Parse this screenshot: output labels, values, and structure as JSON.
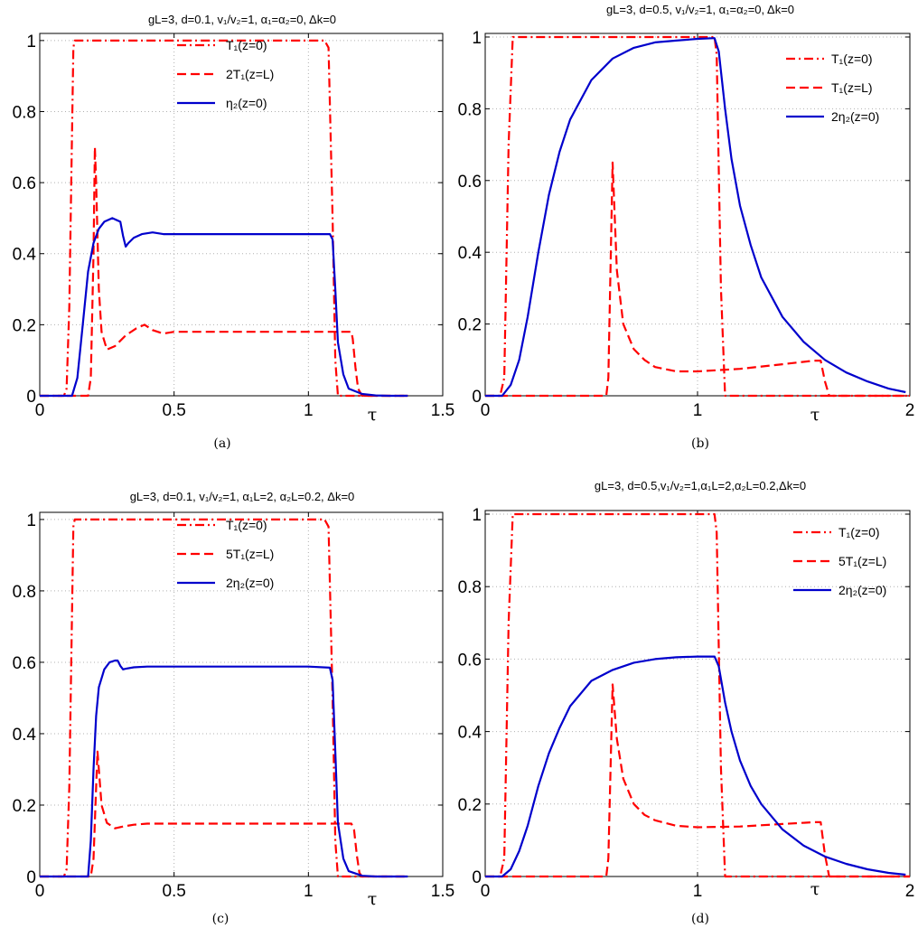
{
  "colors": {
    "red": "#ff0000",
    "blue": "#0000cc",
    "grid": "#b0b0b0",
    "axis": "#000000"
  },
  "chart_data": [
    {
      "type": "line",
      "panel": "a",
      "title": "gL=3, d=0.1, v₁/v₂=1, α₁=α₂=0, Δk=0",
      "caption": "(a)",
      "xlabel": "τ",
      "xlim": [
        0,
        1.5
      ],
      "ylim": [
        0,
        1.02
      ],
      "xticks": [
        "0",
        "0.5",
        "1",
        "1.5"
      ],
      "xtick_values": [
        0,
        0.5,
        1,
        1.5
      ],
      "yticks": [
        "0",
        "0.2",
        "0.4",
        "0.6",
        "0.8",
        "1"
      ],
      "ytick_values": [
        0,
        0.2,
        0.4,
        0.6,
        0.8,
        1
      ],
      "grid": true,
      "legend_position": "top-center",
      "series": [
        {
          "name": "T₁(z=0)",
          "style": "dashdot",
          "color": "#ff0000",
          "x": [
            0,
            0.09,
            0.1,
            0.11,
            0.125,
            0.13,
            1.06,
            1.075,
            1.09,
            1.1,
            1.11,
            1.37
          ],
          "y": [
            0,
            0,
            0.02,
            0.25,
            0.98,
            1,
            1,
            0.98,
            0.5,
            0.1,
            0,
            0
          ]
        },
        {
          "name": "2T₁(z=L)",
          "style": "dashed",
          "color": "#ff0000",
          "x": [
            0,
            0.18,
            0.19,
            0.2,
            0.205,
            0.21,
            0.22,
            0.23,
            0.25,
            0.28,
            0.32,
            0.36,
            0.39,
            0.42,
            0.46,
            0.5,
            0.6,
            0.8,
            1.0,
            1.16,
            1.165,
            1.175,
            1.185,
            1.2,
            1.37
          ],
          "y": [
            0,
            0,
            0.05,
            0.4,
            0.7,
            0.6,
            0.3,
            0.18,
            0.13,
            0.14,
            0.17,
            0.19,
            0.2,
            0.185,
            0.175,
            0.18,
            0.18,
            0.18,
            0.18,
            0.18,
            0.16,
            0.08,
            0.02,
            0,
            0
          ]
        },
        {
          "name": "η₂(z=0)",
          "style": "solid",
          "color": "#0000cc",
          "x": [
            0,
            0.12,
            0.14,
            0.16,
            0.18,
            0.2,
            0.22,
            0.24,
            0.27,
            0.3,
            0.31,
            0.32,
            0.33,
            0.35,
            0.38,
            0.42,
            0.46,
            0.5,
            0.6,
            0.8,
            1.0,
            1.08,
            1.09,
            1.1,
            1.11,
            1.13,
            1.15,
            1.2,
            1.25,
            1.3,
            1.37
          ],
          "y": [
            0,
            0,
            0.05,
            0.2,
            0.35,
            0.43,
            0.47,
            0.49,
            0.5,
            0.49,
            0.45,
            0.42,
            0.43,
            0.445,
            0.455,
            0.46,
            0.455,
            0.455,
            0.455,
            0.455,
            0.455,
            0.455,
            0.44,
            0.3,
            0.15,
            0.06,
            0.02,
            0.005,
            0.001,
            0,
            0
          ]
        }
      ]
    },
    {
      "type": "line",
      "panel": "b",
      "title": "gL=3, d=0.5, v₁/v₂=1, α₁=α₂=0, Δk=0",
      "caption": "(b)",
      "xlabel": "τ",
      "xlim": [
        0,
        2
      ],
      "ylim": [
        0,
        1.01
      ],
      "xticks": [
        "0",
        "1",
        "2"
      ],
      "xtick_values": [
        0,
        1,
        2
      ],
      "yticks": [
        "0",
        "0.2",
        "0.4",
        "0.6",
        "0.8",
        "1"
      ],
      "ytick_values": [
        0,
        0.2,
        0.4,
        0.6,
        0.8,
        1
      ],
      "grid": true,
      "legend_position": "top-right",
      "series": [
        {
          "name": "T₁(z=0)",
          "style": "dashdot",
          "color": "#ff0000",
          "x": [
            0,
            0.07,
            0.09,
            0.11,
            0.13,
            1.08,
            1.09,
            1.11,
            1.13,
            2
          ],
          "y": [
            0,
            0,
            0.05,
            0.7,
            1,
            1,
            0.95,
            0.3,
            0,
            0
          ]
        },
        {
          "name": "T₁(z=L)",
          "style": "dashed",
          "color": "#ff0000",
          "x": [
            0,
            0.57,
            0.58,
            0.6,
            0.62,
            0.65,
            0.7,
            0.75,
            0.8,
            0.9,
            1.0,
            1.2,
            1.4,
            1.55,
            1.58,
            1.6,
            1.62,
            2
          ],
          "y": [
            0,
            0,
            0.05,
            0.65,
            0.35,
            0.2,
            0.13,
            0.1,
            0.08,
            0.068,
            0.068,
            0.075,
            0.088,
            0.098,
            0.098,
            0.04,
            0,
            0
          ]
        },
        {
          "name": "2η₂(z=0)",
          "style": "solid",
          "color": "#0000cc",
          "x": [
            0,
            0.08,
            0.12,
            0.16,
            0.2,
            0.25,
            0.3,
            0.35,
            0.4,
            0.5,
            0.6,
            0.7,
            0.8,
            0.9,
            1.0,
            1.08,
            1.1,
            1.13,
            1.16,
            1.2,
            1.25,
            1.3,
            1.4,
            1.5,
            1.6,
            1.7,
            1.8,
            1.9,
            1.98
          ],
          "y": [
            0,
            0,
            0.03,
            0.1,
            0.22,
            0.4,
            0.56,
            0.68,
            0.77,
            0.88,
            0.94,
            0.97,
            0.985,
            0.99,
            0.995,
            0.997,
            0.96,
            0.8,
            0.66,
            0.53,
            0.42,
            0.33,
            0.22,
            0.15,
            0.1,
            0.065,
            0.04,
            0.02,
            0.01
          ]
        }
      ]
    },
    {
      "type": "line",
      "panel": "c",
      "title": "gL=3, d=0.1, v₁/v₂=1, α₁L=2, α₂L=0.2, Δk=0",
      "caption": "(c)",
      "xlabel": "τ",
      "xlim": [
        0,
        1.5
      ],
      "ylim": [
        0,
        1.02
      ],
      "xticks": [
        "0",
        "0.5",
        "1",
        "1.5"
      ],
      "xtick_values": [
        0,
        0.5,
        1,
        1.5
      ],
      "yticks": [
        "0",
        "0.2",
        "0.4",
        "0.6",
        "0.8",
        "1"
      ],
      "ytick_values": [
        0,
        0.2,
        0.4,
        0.6,
        0.8,
        1
      ],
      "grid": true,
      "legend_position": "top-center",
      "series": [
        {
          "name": "T₁(z=0)",
          "style": "dashdot",
          "color": "#ff0000",
          "x": [
            0,
            0.09,
            0.1,
            0.11,
            0.125,
            0.13,
            1.06,
            1.075,
            1.09,
            1.1,
            1.11,
            1.37
          ],
          "y": [
            0,
            0,
            0.02,
            0.25,
            0.98,
            1,
            1,
            0.98,
            0.5,
            0.1,
            0,
            0
          ]
        },
        {
          "name": "5T₁(z=L)",
          "style": "dashed",
          "color": "#ff0000",
          "x": [
            0,
            0.19,
            0.2,
            0.21,
            0.215,
            0.22,
            0.23,
            0.25,
            0.28,
            0.31,
            0.35,
            0.4,
            0.5,
            0.6,
            0.8,
            1.0,
            1.16,
            1.17,
            1.18,
            1.19,
            1.2,
            1.37
          ],
          "y": [
            0,
            0,
            0.05,
            0.25,
            0.35,
            0.3,
            0.2,
            0.15,
            0.135,
            0.14,
            0.145,
            0.148,
            0.148,
            0.148,
            0.148,
            0.148,
            0.148,
            0.13,
            0.06,
            0.01,
            0,
            0
          ]
        },
        {
          "name": "2η₂(z=0)",
          "style": "solid",
          "color": "#0000cc",
          "x": [
            0,
            0.18,
            0.19,
            0.2,
            0.21,
            0.22,
            0.24,
            0.26,
            0.28,
            0.29,
            0.3,
            0.31,
            0.32,
            0.35,
            0.4,
            0.5,
            0.8,
            1.0,
            1.08,
            1.09,
            1.1,
            1.11,
            1.13,
            1.15,
            1.2,
            1.25,
            1.37
          ],
          "y": [
            0,
            0,
            0.1,
            0.3,
            0.45,
            0.53,
            0.58,
            0.6,
            0.605,
            0.605,
            0.59,
            0.58,
            0.582,
            0.586,
            0.588,
            0.588,
            0.588,
            0.588,
            0.585,
            0.55,
            0.35,
            0.15,
            0.05,
            0.015,
            0.002,
            0,
            0
          ]
        }
      ]
    },
    {
      "type": "line",
      "panel": "d",
      "title": "gL=3, d=0.5,v₁/v₂=1,α₁L=2,α₂L=0.2,Δk=0",
      "caption": "(d)",
      "xlabel": "τ",
      "xlim": [
        0,
        2
      ],
      "ylim": [
        0,
        1.01
      ],
      "xticks": [
        "0",
        "1",
        "2"
      ],
      "xtick_values": [
        0,
        1,
        2
      ],
      "yticks": [
        "0",
        "0.2",
        "0.4",
        "0.6",
        "0.8",
        "1"
      ],
      "ytick_values": [
        0,
        0.2,
        0.4,
        0.6,
        0.8,
        1
      ],
      "grid": true,
      "legend_position": "top-right",
      "series": [
        {
          "name": "T₁(z=0)",
          "style": "dashdot",
          "color": "#ff0000",
          "x": [
            0,
            0.07,
            0.09,
            0.11,
            0.13,
            1.08,
            1.09,
            1.11,
            1.13,
            2
          ],
          "y": [
            0,
            0,
            0.05,
            0.7,
            1,
            1,
            0.95,
            0.3,
            0,
            0
          ]
        },
        {
          "name": "5T₁(z=L)",
          "style": "dashed",
          "color": "#ff0000",
          "x": [
            0,
            0.57,
            0.58,
            0.6,
            0.62,
            0.65,
            0.7,
            0.75,
            0.8,
            0.9,
            1.0,
            1.2,
            1.4,
            1.55,
            1.58,
            1.6,
            1.62,
            2
          ],
          "y": [
            0,
            0,
            0.05,
            0.53,
            0.38,
            0.27,
            0.2,
            0.17,
            0.155,
            0.14,
            0.136,
            0.138,
            0.145,
            0.15,
            0.15,
            0.06,
            0,
            0
          ]
        },
        {
          "name": "2η₂(z=0)",
          "style": "solid",
          "color": "#0000cc",
          "x": [
            0,
            0.08,
            0.12,
            0.16,
            0.2,
            0.25,
            0.3,
            0.35,
            0.4,
            0.5,
            0.6,
            0.7,
            0.8,
            0.9,
            1.0,
            1.08,
            1.1,
            1.13,
            1.16,
            1.2,
            1.25,
            1.3,
            1.4,
            1.5,
            1.6,
            1.7,
            1.8,
            1.9,
            1.98
          ],
          "y": [
            0,
            0,
            0.02,
            0.07,
            0.14,
            0.25,
            0.34,
            0.41,
            0.47,
            0.54,
            0.57,
            0.59,
            0.6,
            0.605,
            0.607,
            0.607,
            0.58,
            0.48,
            0.4,
            0.32,
            0.25,
            0.2,
            0.13,
            0.085,
            0.055,
            0.035,
            0.02,
            0.01,
            0.005
          ]
        }
      ]
    }
  ]
}
